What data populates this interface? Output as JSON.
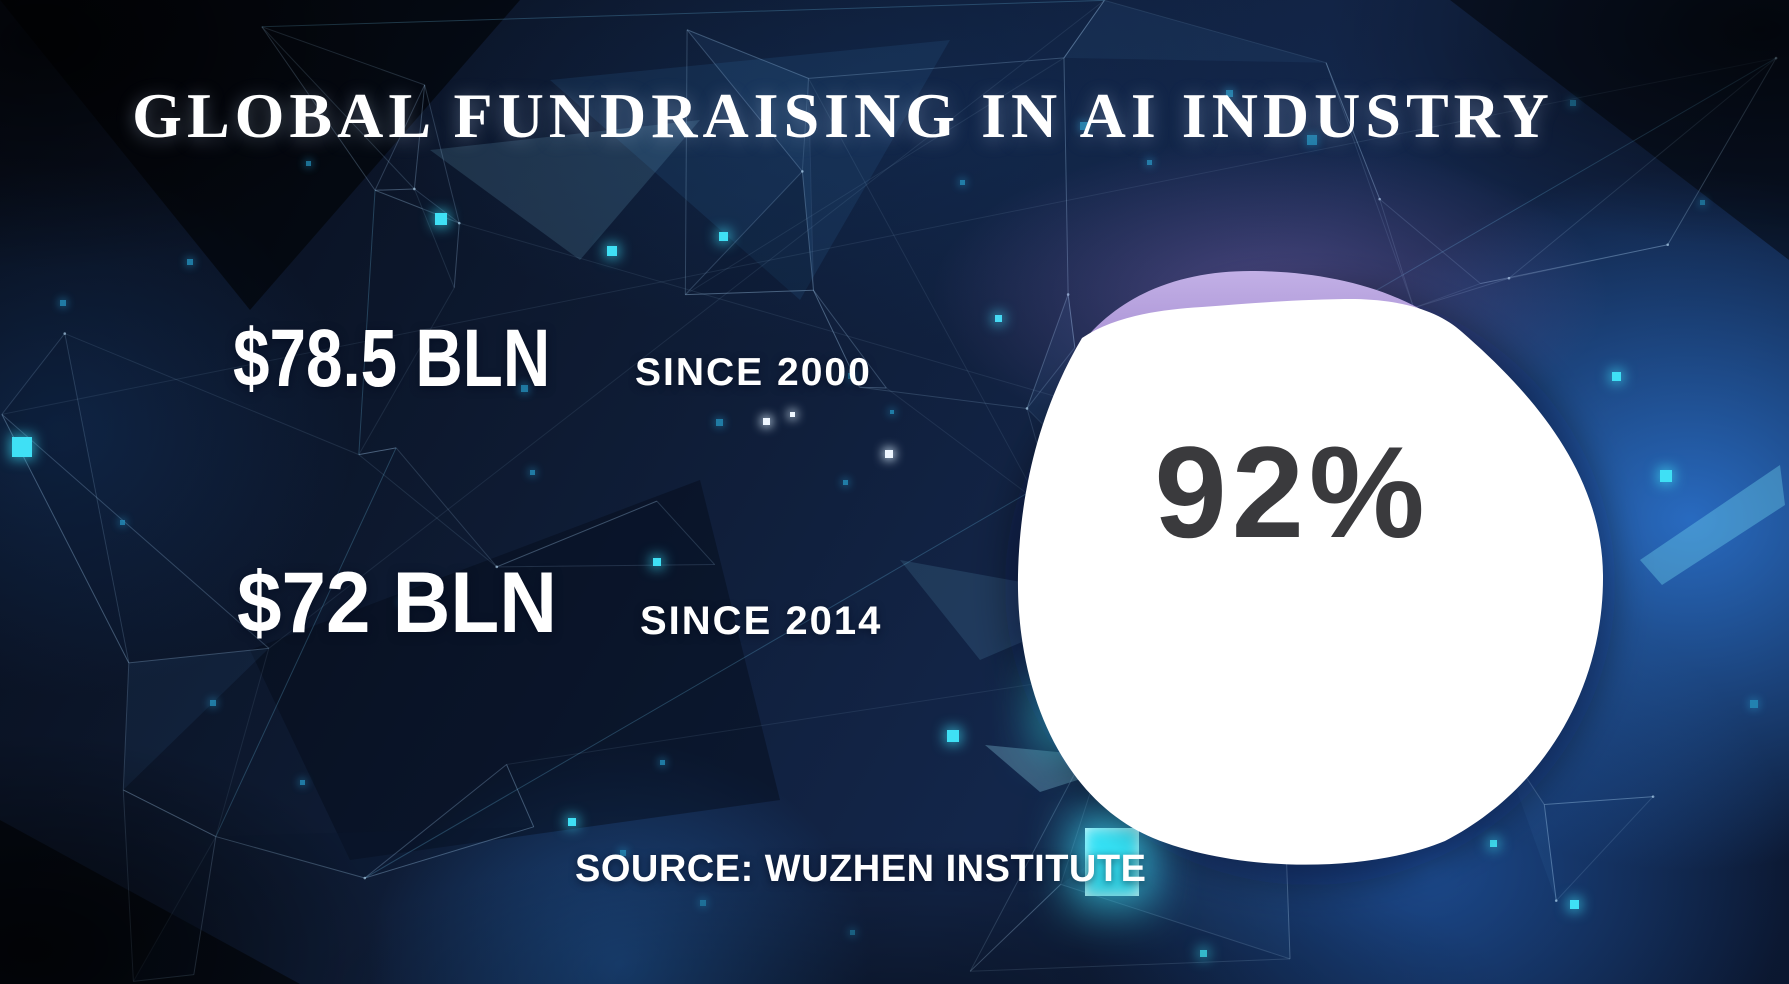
{
  "title": "GLOBAL FUNDRAISING IN AI INDUSTRY",
  "stats": [
    {
      "amount": "$78.5 BLN",
      "period": "SINCE 2000"
    },
    {
      "amount": "$72 BLN",
      "period": "SINCE 2014"
    }
  ],
  "donut": {
    "label": "92%"
  },
  "source": "SOURCE: WUZHEN INSTITUTE",
  "colors": {
    "accent_cyan": "#3fe0f5",
    "slice_purple": "#b3a0db",
    "circle_white": "#ffffff",
    "percent_text": "#3a3a3d",
    "background_navy": "#0e1b33"
  },
  "chart_data": {
    "type": "pie",
    "title": "GLOBAL FUNDRAISING IN AI INDUSTRY",
    "slices": [
      {
        "label": "share highlighted",
        "value": 92,
        "color": "#ffffff",
        "text": "92%"
      },
      {
        "label": "remainder",
        "value": 8,
        "color": "#b3a0db",
        "text": ""
      }
    ],
    "annotations": [
      {
        "text": "$78.5 BLN",
        "detail": "SINCE 2000"
      },
      {
        "text": "$72 BLN",
        "detail": "SINCE 2014"
      }
    ],
    "source": "SOURCE: WUZHEN INSTITUTE",
    "legend": false,
    "background": "dark blue plexus network"
  }
}
